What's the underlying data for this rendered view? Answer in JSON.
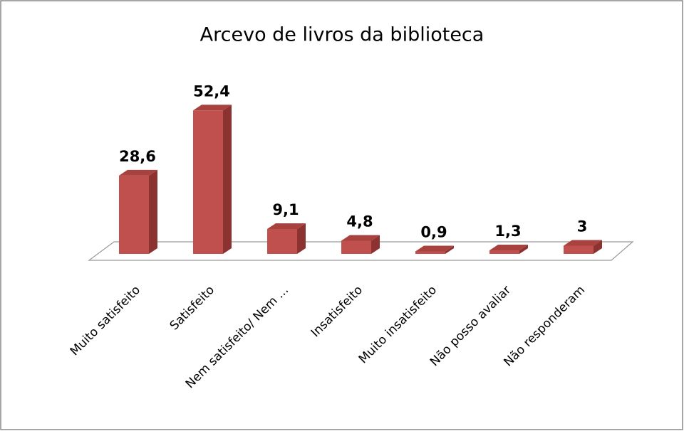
{
  "chart_data": {
    "type": "bar3d",
    "title": "Arcevo de livros da biblioteca",
    "categories": [
      "Muito satisfeito",
      "Satisfeito",
      "Nem satisfeito/ Nem ...",
      "Insatisfeito",
      "Muito insatisfeito",
      "Não posso avaliar",
      "Não responderam"
    ],
    "values": [
      28.6,
      52.4,
      9.1,
      4.8,
      0.9,
      1.3,
      3
    ],
    "value_labels": [
      "28,6",
      "52,4",
      "9,1",
      "4,8",
      "0,9",
      "1,3",
      "3"
    ],
    "color": "#c0504d"
  }
}
